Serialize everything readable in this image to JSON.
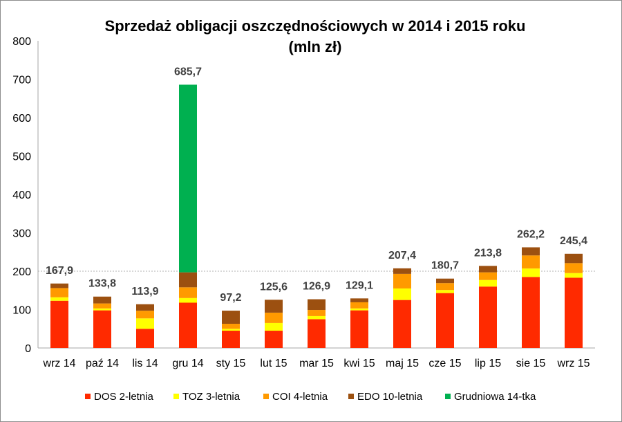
{
  "chart_data": {
    "type": "bar",
    "stacked": true,
    "title_line1": "Sprzedaż obligacji oszczędnościowych w 2014 i 2015 roku",
    "title_line2": "(mln zł)",
    "categories": [
      "wrz 14",
      "paź 14",
      "lis 14",
      "gru 14",
      "sty 15",
      "lut 15",
      "mar 15",
      "kwi 15",
      "maj 15",
      "cze 15",
      "lip 15",
      "sie 15",
      "wrz 15"
    ],
    "totals": [
      "167,9",
      "133,8",
      "113,9",
      "685,7",
      "97,2",
      "125,6",
      "126,9",
      "129,1",
      "207,4",
      "180,7",
      "213,8",
      "262,2",
      "245,4"
    ],
    "series": [
      {
        "name": "DOS 2-letnia",
        "color": "#ff2a00",
        "values": [
          123,
          98,
          50,
          118,
          45,
          45,
          75,
          98,
          125,
          143,
          160,
          185,
          183
        ]
      },
      {
        "name": "TOZ 3-letnia",
        "color": "#ffff00",
        "values": [
          9,
          5,
          27,
          12,
          5,
          20,
          8,
          5,
          30,
          8,
          17,
          22,
          12
        ]
      },
      {
        "name": "COI 4-letnia",
        "color": "#ff9a00",
        "values": [
          24,
          13,
          20,
          28,
          13,
          27,
          16,
          16,
          38,
          18,
          20,
          34,
          26
        ]
      },
      {
        "name": "EDO 10-letnia",
        "color": "#9c5010",
        "values": [
          11.9,
          17.8,
          16.9,
          39,
          34.2,
          33.6,
          27.9,
          10.1,
          14.4,
          11.7,
          16.8,
          21.2,
          24.4
        ]
      },
      {
        "name": "Grudniowa 14-tka",
        "color": "#00b050",
        "values": [
          0,
          0,
          0,
          488.7,
          0,
          0,
          0,
          0,
          0,
          0,
          0,
          0,
          0
        ]
      }
    ],
    "y_ticks": [
      "0",
      "100",
      "200",
      "300",
      "400",
      "500",
      "600",
      "700",
      "800"
    ],
    "ylim": [
      0,
      800
    ],
    "reference_line": 200,
    "legend_position": "bottom"
  }
}
